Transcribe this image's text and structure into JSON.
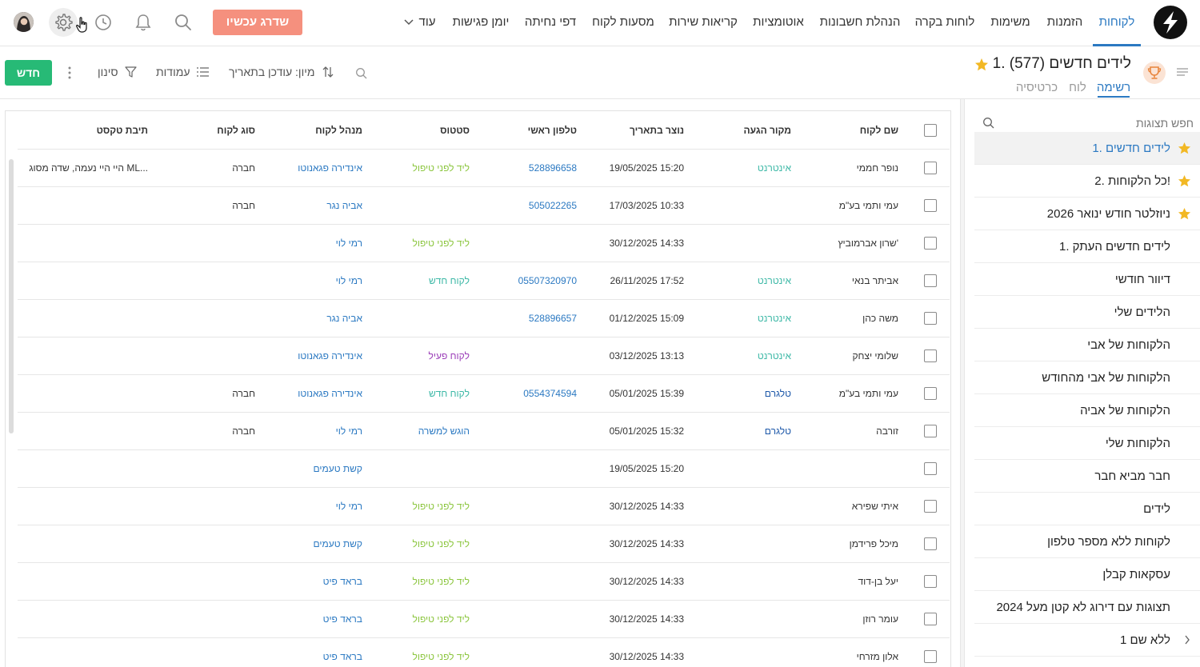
{
  "nav": {
    "items": [
      "לקוחות",
      "הזמנות",
      "משימות",
      "לוחות בקרה",
      "הנהלת חשבונות",
      "אוטומציות",
      "קריאות שירות",
      "מסעות לקוח",
      "דפי נחיתה",
      "יומן פגישות"
    ],
    "more_label": "עוד",
    "upgrade_label": "שדרג עכשיו"
  },
  "view": {
    "title": "1. לידים חדשים",
    "count": "(577)",
    "tabs": [
      "רשימה",
      "לוח",
      "כרטיסיה"
    ]
  },
  "toolbar": {
    "sort_label": "מיון: עודכן בתאריך",
    "columns_label": "עמודות",
    "filter_label": "סינון",
    "new_label": "חדש"
  },
  "sidebar": {
    "search_placeholder": "חפש תצוגות",
    "items": [
      {
        "label": "1. לידים חדשים",
        "star": true,
        "active": true
      },
      {
        "label": "2. כל הלקוחות!",
        "star": true
      },
      {
        "label": "ניוזלטר חודש ינואר 2026",
        "star": true
      },
      {
        "label": "1. לידים חדשים העתק"
      },
      {
        "label": "דיוור חודשי"
      },
      {
        "label": "הלידים שלי"
      },
      {
        "label": "הלקוחות של אבי"
      },
      {
        "label": "הלקוחות של אבי מהחודש"
      },
      {
        "label": "הלקוחות של אביה"
      },
      {
        "label": "הלקוחות שלי"
      },
      {
        "label": "חבר מביא חבר"
      },
      {
        "label": "לידים"
      },
      {
        "label": "לקוחות ללא מספר טלפון"
      },
      {
        "label": "עסקאות קבלן"
      },
      {
        "label": "תצוגות עם דירוג לא קטן מעל 2024"
      },
      {
        "label": "ללא שם 1",
        "chevron": true
      }
    ]
  },
  "table": {
    "columns": [
      "שם לקוח",
      "מקור הגעה",
      "נוצר בתאריך",
      "טלפון ראשי",
      "סטטוס",
      "מנהל לקוח",
      "סוג לקוח",
      "תיבת טקסט"
    ],
    "rows": [
      {
        "name": "נופר חממי",
        "source": "אינטרנט",
        "created": "19/05/2025 15:20",
        "phone": "528896658",
        "status": "ליד לפני טיפול",
        "manager": "אינדירה פגאנוטו",
        "type": "חברה",
        "text": "היי היי נעמה, שדה מסוג ML..."
      },
      {
        "name": "עמי ותמי בע\"מ",
        "source": "",
        "created": "17/03/2025 10:33",
        "phone": "505022265",
        "status": "",
        "manager": "אביה נגר",
        "type": "חברה",
        "text": ""
      },
      {
        "name": "שרון אברמוביץ'",
        "source": "",
        "created": "30/12/2025 14:33",
        "phone": "",
        "status": "ליד לפני טיפול",
        "manager": "רמי לוי",
        "type": "",
        "text": ""
      },
      {
        "name": "אביתר בנאי",
        "source": "אינטרנט",
        "created": "26/11/2025 17:52",
        "phone": "05507320970",
        "status": "לקוח חדש",
        "manager": "רמי לוי",
        "type": "",
        "text": ""
      },
      {
        "name": "משה כהן",
        "source": "אינטרנט",
        "created": "01/12/2025 15:09",
        "phone": "528896657",
        "status": "",
        "manager": "אביה נגר",
        "type": "",
        "text": ""
      },
      {
        "name": "שלומי יצחק",
        "source": "אינטרנט",
        "created": "03/12/2025 13:13",
        "phone": "",
        "status": "לקוח פעיל",
        "manager": "אינדירה פגאנוטו",
        "type": "",
        "text": ""
      },
      {
        "name": "עמי ותמי בע\"מ",
        "source": "טלגרם",
        "created": "05/01/2025 15:39",
        "phone": "0554374594",
        "status": "לקוח חדש",
        "manager": "אינדירה פגאנוטו",
        "type": "חברה",
        "text": ""
      },
      {
        "name": "זורבה",
        "source": "טלגרם",
        "created": "05/01/2025 15:32",
        "phone": "",
        "status": "הוגש למשרה",
        "manager": "רמי לוי",
        "type": "חברה",
        "text": ""
      },
      {
        "name": "",
        "source": "",
        "created": "19/05/2025 15:20",
        "phone": "",
        "status": "",
        "manager": "קשת טעמים",
        "type": "",
        "text": ""
      },
      {
        "name": "איתי שפירא",
        "source": "",
        "created": "30/12/2025 14:33",
        "phone": "",
        "status": "ליד לפני טיפול",
        "manager": "רמי לוי",
        "type": "",
        "text": ""
      },
      {
        "name": "מיכל פרידמן",
        "source": "",
        "created": "30/12/2025 14:33",
        "phone": "",
        "status": "ליד לפני טיפול",
        "manager": "קשת טעמים",
        "type": "",
        "text": ""
      },
      {
        "name": "יעל בן-דוד",
        "source": "",
        "created": "30/12/2025 14:33",
        "phone": "",
        "status": "ליד לפני טיפול",
        "manager": "בראד פיט",
        "type": "",
        "text": ""
      },
      {
        "name": "עומר רוזן",
        "source": "",
        "created": "30/12/2025 14:33",
        "phone": "",
        "status": "ליד לפני טיפול",
        "manager": "בראד פיט",
        "type": "",
        "text": ""
      },
      {
        "name": "אלון מזרחי",
        "source": "",
        "created": "30/12/2025 14:33",
        "phone": "",
        "status": "ליד לפני טיפול",
        "manager": "בראד פיט",
        "type": "",
        "text": ""
      }
    ]
  },
  "colors": {
    "accent": "#2b79c2",
    "upgrade": "#f5907e",
    "new_button": "#27ba76",
    "star": "#f2b824",
    "source_internet": "#3cb8a6",
    "source_telegram": "#1a56a8",
    "status_lead": "#8cc63f",
    "status_new": "#3cb8a6",
    "status_active": "#9b3db8",
    "status_submitted": "#2b79c2"
  }
}
